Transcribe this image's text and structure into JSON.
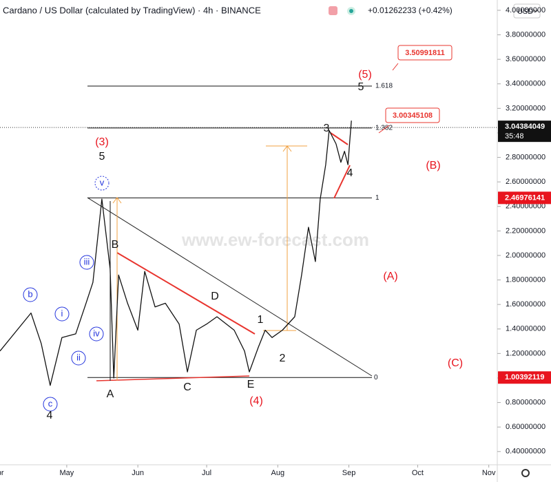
{
  "chart_data": {
    "type": "line",
    "title": "Cardano / US Dollar (calculated by TradingView) · 4h · BINANCE",
    "change": "+0.01262233 (+0.42%)",
    "currency": "USD",
    "watermark": "www.ew-forecast.com",
    "color": "#111111",
    "x": [
      0.9,
      14.4,
      18.9,
      22.8,
      27.9,
      33.9,
      38.4,
      41.4,
      45.3,
      48.9,
      50.5,
      52.6,
      56.5,
      61.0,
      64.0,
      68.5,
      73.0,
      79.0,
      82.6,
      86.5,
      91.0,
      95.5,
      103.0,
      107.5,
      109.6,
      113.5,
      116.5,
      119.5,
      124.0,
      129.4,
      132.4,
      135.4,
      138.4,
      140.5,
      142.9,
      144.4,
      147.4,
      149.5,
      151.1,
      152.6,
      153.5,
      154.1
    ],
    "values": [
      1.22,
      1.53,
      1.28,
      0.94,
      1.33,
      1.36,
      1.61,
      1.78,
      2.46,
      1.89,
      1.0,
      1.84,
      1.61,
      1.39,
      1.87,
      1.58,
      1.61,
      1.44,
      1.05,
      1.39,
      1.44,
      1.5,
      1.39,
      1.22,
      1.05,
      1.25,
      1.39,
      1.33,
      1.39,
      1.5,
      1.84,
      2.23,
      1.95,
      2.46,
      2.74,
      3.02,
      2.91,
      2.76,
      2.85,
      2.74,
      2.96,
      3.1
    ],
    "xlim": [
      0.9,
      217.7
    ],
    "ylim": [
      0.292,
      4.084
    ],
    "xticks": [
      {
        "value": 0,
        "label": "Apr"
      },
      {
        "value": 30,
        "label": "May"
      },
      {
        "value": 61,
        "label": "Jun"
      },
      {
        "value": 91,
        "label": "Jul"
      },
      {
        "value": 122,
        "label": "Aug"
      },
      {
        "value": 153,
        "label": "Sep"
      },
      {
        "value": 183,
        "label": "Oct"
      },
      {
        "value": 214,
        "label": "Nov"
      }
    ],
    "yticks": [
      {
        "value": 4.0,
        "label": "4.00000000"
      },
      {
        "value": 3.8,
        "label": "3.80000000"
      },
      {
        "value": 3.6,
        "label": "3.60000000"
      },
      {
        "value": 3.4,
        "label": "3.40000000"
      },
      {
        "value": 3.2,
        "label": "3.20000000"
      },
      {
        "value": 3.0,
        "label": "3.00000000"
      },
      {
        "value": 2.8,
        "label": "2.80000000"
      },
      {
        "value": 2.6,
        "label": "2.60000000"
      },
      {
        "value": 2.4,
        "label": "2.40000000"
      },
      {
        "value": 2.2,
        "label": "2.20000000"
      },
      {
        "value": 2.0,
        "label": "2.00000000"
      },
      {
        "value": 1.8,
        "label": "1.80000000"
      },
      {
        "value": 1.6,
        "label": "1.60000000"
      },
      {
        "value": 1.4,
        "label": "1.40000000"
      },
      {
        "value": 1.2,
        "label": "1.20000000"
      },
      {
        "value": 1.0,
        "label": "1.00000000"
      },
      {
        "value": 0.8,
        "label": "0.80000000"
      },
      {
        "value": 0.6,
        "label": "0.60000000"
      },
      {
        "value": 0.4,
        "label": "0.40000000"
      }
    ],
    "last_price": 3.04384049,
    "countdown": "35:48",
    "price_tags": [
      2.46976141,
      1.00392119
    ],
    "targets": [
      3.50991811,
      3.00345108
    ],
    "fib_levels": [
      {
        "value": 3.382,
        "label": "1.618"
      },
      {
        "value": 3.04,
        "label": "1.382"
      },
      {
        "value": 2.4698,
        "label": "1"
      },
      {
        "value": 1.0039,
        "label": "0"
      }
    ],
    "annotations": [
      {
        "text": "(3)",
        "color": "#e8141e"
      },
      {
        "text": "5",
        "color": "#111111"
      },
      {
        "text": "v",
        "color": "#2233dd",
        "circled": true
      },
      {
        "text": "B",
        "color": "#111111"
      },
      {
        "text": "A",
        "color": "#111111"
      },
      {
        "text": "C",
        "color": "#111111"
      },
      {
        "text": "D",
        "color": "#111111"
      },
      {
        "text": "E",
        "color": "#111111"
      },
      {
        "text": "(4)",
        "color": "#e8141e"
      },
      {
        "text": "b",
        "color": "#2233dd",
        "circled": true
      },
      {
        "text": "i",
        "color": "#2233dd",
        "circled": true
      },
      {
        "text": "iii",
        "color": "#2233dd",
        "circled": true
      },
      {
        "text": "iv",
        "color": "#2233dd",
        "circled": true
      },
      {
        "text": "ii",
        "color": "#2233dd",
        "circled": true
      },
      {
        "text": "c",
        "color": "#2233dd",
        "circled": true
      },
      {
        "text": "4",
        "color": "#111111"
      },
      {
        "text": "1",
        "color": "#111111"
      },
      {
        "text": "2",
        "color": "#111111"
      },
      {
        "text": "3",
        "color": "#111111"
      },
      {
        "text": "4",
        "color": "#111111"
      },
      {
        "text": "(5)",
        "color": "#e8141e"
      },
      {
        "text": "5",
        "color": "#111111"
      },
      {
        "text": "(B)",
        "color": "#e8141e"
      },
      {
        "text": "(A)",
        "color": "#e8141e"
      },
      {
        "text": "(C)",
        "color": "#e8141e"
      }
    ]
  }
}
